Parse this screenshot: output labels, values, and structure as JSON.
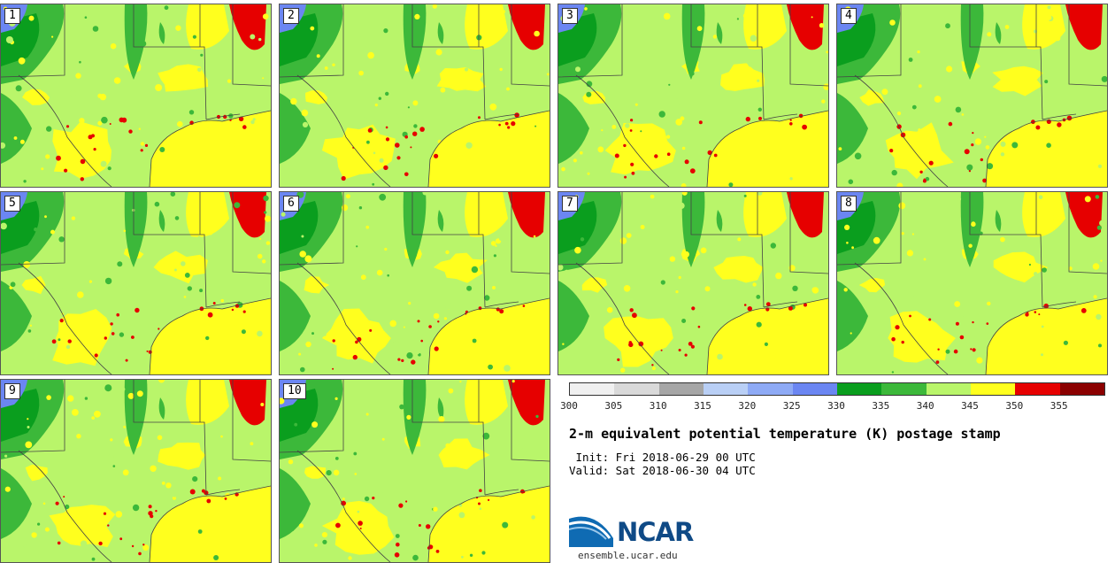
{
  "map": {
    "title": "2-m equivalent potential temperature (K) postage stamp",
    "init": " Init: Fri 2018-06-29 00 UTC",
    "valid": "Valid: Sat 2018-06-30 04 UTC",
    "members": [
      "1",
      "2",
      "3",
      "4",
      "5",
      "6",
      "7",
      "8",
      "9",
      "10"
    ]
  },
  "colorbar": {
    "colors": [
      "#f0f0f0",
      "#d9d9d9",
      "#a6a6a6",
      "#b9cff5",
      "#8eaaf5",
      "#6b86f2",
      "#0a9e1e",
      "#3cb83a",
      "#b9f56a",
      "#ffff1e",
      "#e60000",
      "#8b0000"
    ],
    "tick_labels": [
      "300",
      "305",
      "310",
      "315",
      "320",
      "325",
      "330",
      "335",
      "340",
      "345",
      "350",
      "355"
    ]
  },
  "palette": {
    "land": "#b9f56a",
    "warm": "#ffff1e",
    "hot": "#e60000",
    "cool": "#3cb83a",
    "cooler": "#0a9e1e",
    "cold": "#6b86f2",
    "boundary": "#444444"
  },
  "logo": {
    "name": "NCAR",
    "website": "ensemble.ucar.edu"
  }
}
